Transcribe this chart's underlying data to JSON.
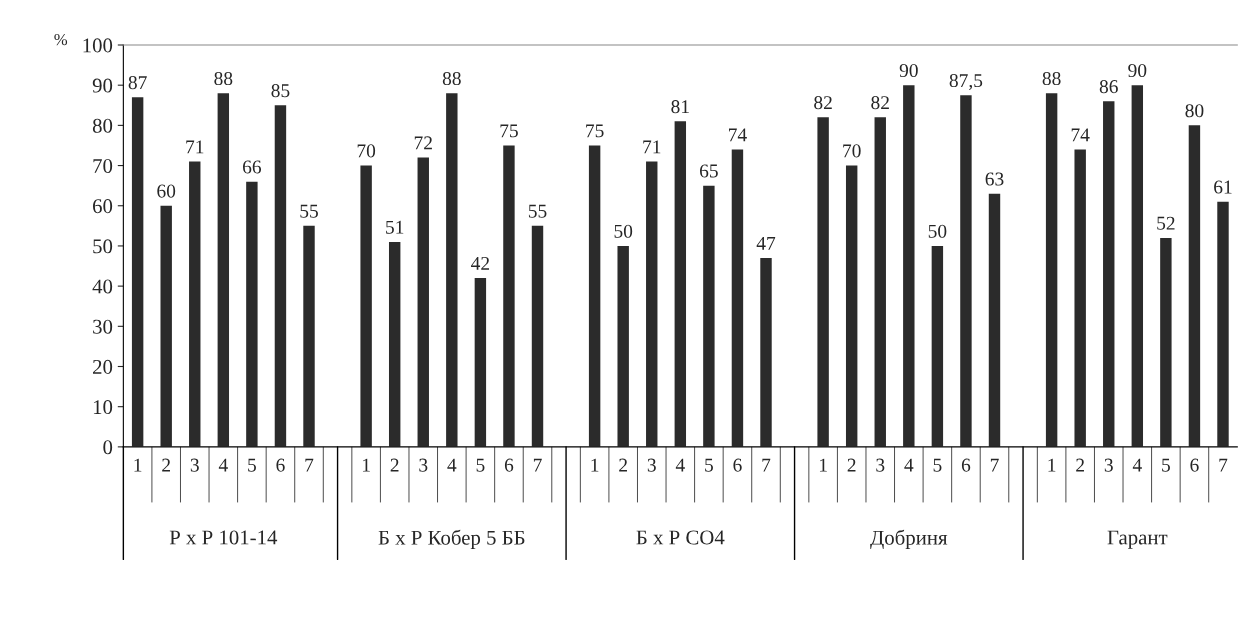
{
  "chart_data": {
    "type": "bar",
    "ylabel": "%",
    "categories": [
      "1",
      "2",
      "3",
      "4",
      "5",
      "6",
      "7",
      null,
      "1",
      "2",
      "3",
      "4",
      "5",
      "6",
      "7",
      null,
      "1",
      "2",
      "3",
      "4",
      "5",
      "6",
      "7",
      null,
      "1",
      "2",
      "3",
      "4",
      "5",
      "6",
      "7",
      null,
      "1",
      "2",
      "3",
      "4",
      "5",
      "6",
      "7"
    ],
    "values": [
      87,
      60,
      71,
      88,
      66,
      85,
      55,
      null,
      70,
      51,
      72,
      88,
      42,
      75,
      55,
      null,
      75,
      50,
      71,
      81,
      65,
      74,
      47,
      null,
      82,
      70,
      82,
      90,
      50,
      87.5,
      63,
      null,
      88,
      74,
      86,
      90,
      52,
      80,
      61
    ],
    "value_labels": [
      "87",
      "60",
      "71",
      "88",
      "66",
      "85",
      "55",
      null,
      "70",
      "51",
      "72",
      "88",
      "42",
      "75",
      "55",
      null,
      "75",
      "50",
      "71",
      "81",
      "65",
      "74",
      "47",
      null,
      "82",
      "70",
      "82",
      "90",
      "50",
      "87,5",
      "63",
      null,
      "88",
      "74",
      "86",
      "90",
      "52",
      "80",
      "61"
    ],
    "color": "#2b2b2b",
    "ylim": [
      0,
      100
    ],
    "yticks": [
      0,
      10,
      20,
      30,
      40,
      50,
      60,
      70,
      80,
      90,
      100
    ],
    "annotations": [
      "Р х Р 101-14",
      "Б х Р Кобер 5 ББ",
      "Б х Р СО4",
      "Добриня",
      "Гарант"
    ],
    "grid": false
  }
}
